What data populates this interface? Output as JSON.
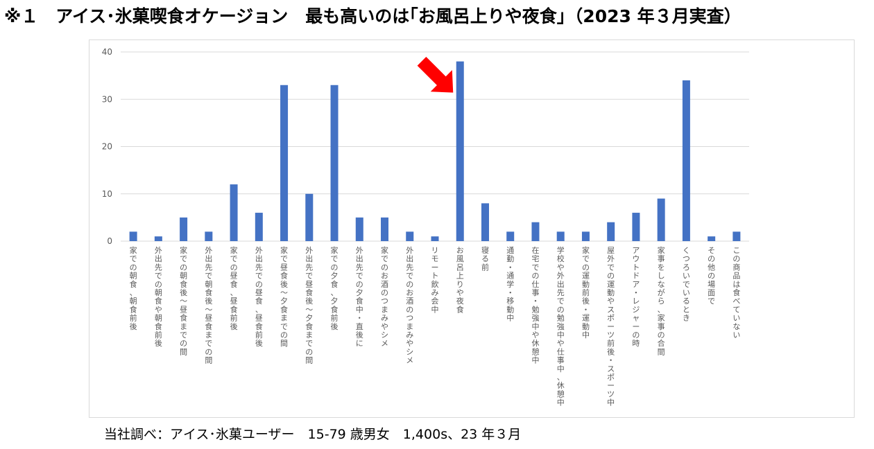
{
  "heading": "※１　アイス･氷菓喫食オケージョン　最も高いのは｢お風呂上りや夜食｣（2023 年３月実査）",
  "source_note": "当社調べ：アイス･氷菓ユーザー　15-79 歳男女　1,400s、23 年３月",
  "colors": {
    "bar": "#4472c4",
    "grid": "#d9d9d9",
    "axis_text": "#595959",
    "arrow": "#ff0000"
  },
  "annotation": {
    "type": "arrow",
    "target_category": "お風呂上りや夜食"
  },
  "chart_data": {
    "type": "bar",
    "title": "",
    "xlabel": "",
    "ylabel": "",
    "ylim": [
      0,
      40
    ],
    "yticks": [
      0,
      10,
      20,
      30,
      40
    ],
    "grid": true,
    "legend": "none",
    "categories": [
      "家での朝食、朝食前後",
      "外出先での朝食や朝食前後",
      "家での朝食後～昼食までの間",
      "外出先で朝食後～昼食までの間",
      "家での昼食、昼食前後",
      "外出先での昼食、昼食前後",
      "家で昼食後～夕食までの間",
      "外出先で昼食後～夕食までの間",
      "家での夕食、夕食前後",
      "外出先での夕食中・直後に",
      "家でのお酒のつまみやシメ",
      "外出先でのお酒のつまみやシメ",
      "リモート飲み会中",
      "お風呂上りや夜食",
      "寝る前",
      "通勤・通学・移動中",
      "在宅での仕事・勉強中や休憩中",
      "学校や外出先での勉強中や仕事中、休憩中",
      "家での運動前後・運動中",
      "屋外での運動やスポーツ前後・スポーツ中",
      "アウトドア・レジャーの時",
      "家事をしながら、家事の合間",
      "くつろいでいるとき",
      "その他の場面で",
      "この商品は食べていない"
    ],
    "values": [
      2,
      1,
      5,
      2,
      12,
      6,
      33,
      10,
      33,
      5,
      5,
      2,
      1,
      38,
      8,
      2,
      4,
      2,
      2,
      4,
      6,
      9,
      34,
      1,
      2
    ]
  }
}
